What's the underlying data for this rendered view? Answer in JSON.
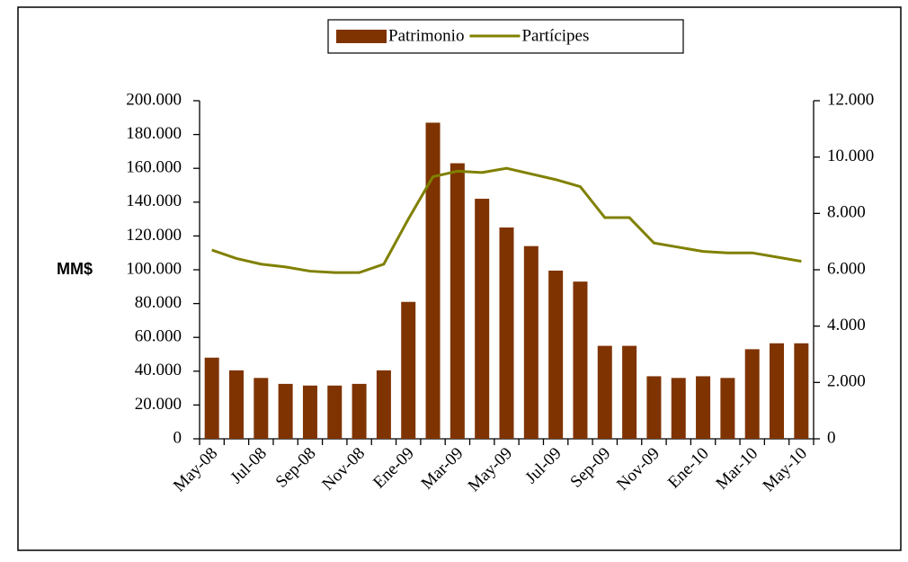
{
  "chart_data": {
    "type": "bar",
    "y_label": "MM$",
    "legend": "top",
    "categories": [
      "May-08",
      null,
      "Jul-08",
      null,
      "Sep-08",
      null,
      "Nov-08",
      null,
      "Ene-09",
      null,
      "Mar-09",
      null,
      "May-09",
      null,
      "Jul-09",
      null,
      "Sep-09",
      null,
      "Nov-09",
      null,
      "Ene-10",
      null,
      "Mar-10",
      null,
      "May-10"
    ],
    "series": [
      {
        "name": "Patrimonio",
        "type": "bar",
        "color": "#7f3300",
        "values": [
          48000,
          40500,
          36000,
          32500,
          31500,
          31500,
          32500,
          40500,
          81000,
          187000,
          163000,
          142000,
          125000,
          114000,
          99500,
          93000,
          55000,
          55000,
          37000,
          36000,
          37000,
          36000,
          53000,
          56500,
          56500
        ]
      },
      {
        "name": "Partícipes",
        "type": "line",
        "axis": "y2",
        "color": "#808000",
        "values": [
          6700,
          6400,
          6200,
          6100,
          5950,
          5900,
          5900,
          6200,
          7800,
          9300,
          9500,
          9450,
          9600,
          9400,
          9200,
          8950,
          7850,
          7850,
          6950,
          6800,
          6650,
          6600,
          6600,
          6450,
          6300
        ]
      }
    ],
    "ylim": [
      0,
      200000
    ],
    "yticks": [
      0,
      {
        "value": 20000,
        "label": "20.000"
      },
      {
        "value": 40000,
        "label": "40.000"
      },
      {
        "value": 60000,
        "label": "60.000"
      },
      {
        "value": 80000,
        "label": "80.000"
      },
      {
        "value": 100000,
        "label": "100.000"
      },
      {
        "value": 120000,
        "label": "120.000"
      },
      {
        "value": 140000,
        "label": "140.000"
      },
      {
        "value": 160000,
        "label": "160.000"
      },
      {
        "value": 180000,
        "label": "180.000"
      },
      {
        "value": 200000,
        "label": "200.000"
      }
    ],
    "y2lim": [
      0,
      12000
    ],
    "y2ticks": [
      0,
      {
        "value": 2000,
        "label": "2.000"
      },
      {
        "value": 4000,
        "label": "4.000"
      },
      {
        "value": 6000,
        "label": "6.000"
      },
      {
        "value": 8000,
        "label": "8.000"
      },
      {
        "value": 10000,
        "label": "10.000"
      },
      {
        "value": 12000,
        "label": "12.000"
      }
    ]
  }
}
